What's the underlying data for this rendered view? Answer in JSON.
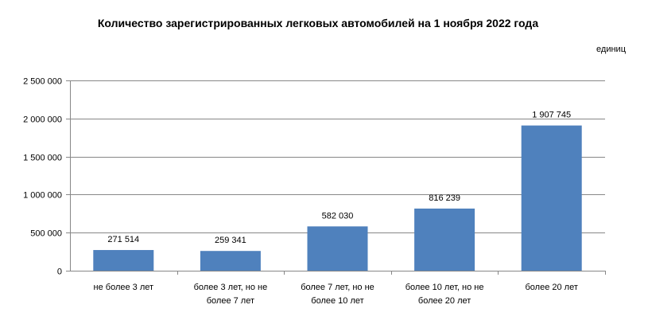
{
  "chart_data": {
    "type": "bar",
    "title": "Количество зарегистрированных легковых автомобилей на 1 ноября 2022 года",
    "unit_label": "единиц",
    "categories": [
      "не более 3 лет",
      "более 3 лет, но не более 7 лет",
      "более 7 лет, но не более 10 лет",
      "более 10 лет, но не более 20 лет",
      "более 20 лет"
    ],
    "category_lines": [
      [
        "не более 3 лет"
      ],
      [
        "более 3 лет, но не",
        "более 7 лет"
      ],
      [
        "более 7 лет, но не",
        "более 10 лет"
      ],
      [
        "более 10 лет, но не",
        "более 20 лет"
      ],
      [
        "более 20 лет"
      ]
    ],
    "values": [
      271514,
      259341,
      582030,
      816239,
      1907745
    ],
    "value_labels": [
      "271 514",
      "259 341",
      "582 030",
      "816 239",
      "1 907 745"
    ],
    "ylim": [
      0,
      2500000
    ],
    "yticks": [
      0,
      500000,
      1000000,
      1500000,
      2000000,
      2500000
    ],
    "ytick_labels": [
      "0",
      "500 000",
      "1 000 000",
      "1 500 000",
      "2 000 000",
      "2 500 000"
    ],
    "grid": true,
    "bar_color": "#4F81BD",
    "grid_color": "#878787"
  }
}
